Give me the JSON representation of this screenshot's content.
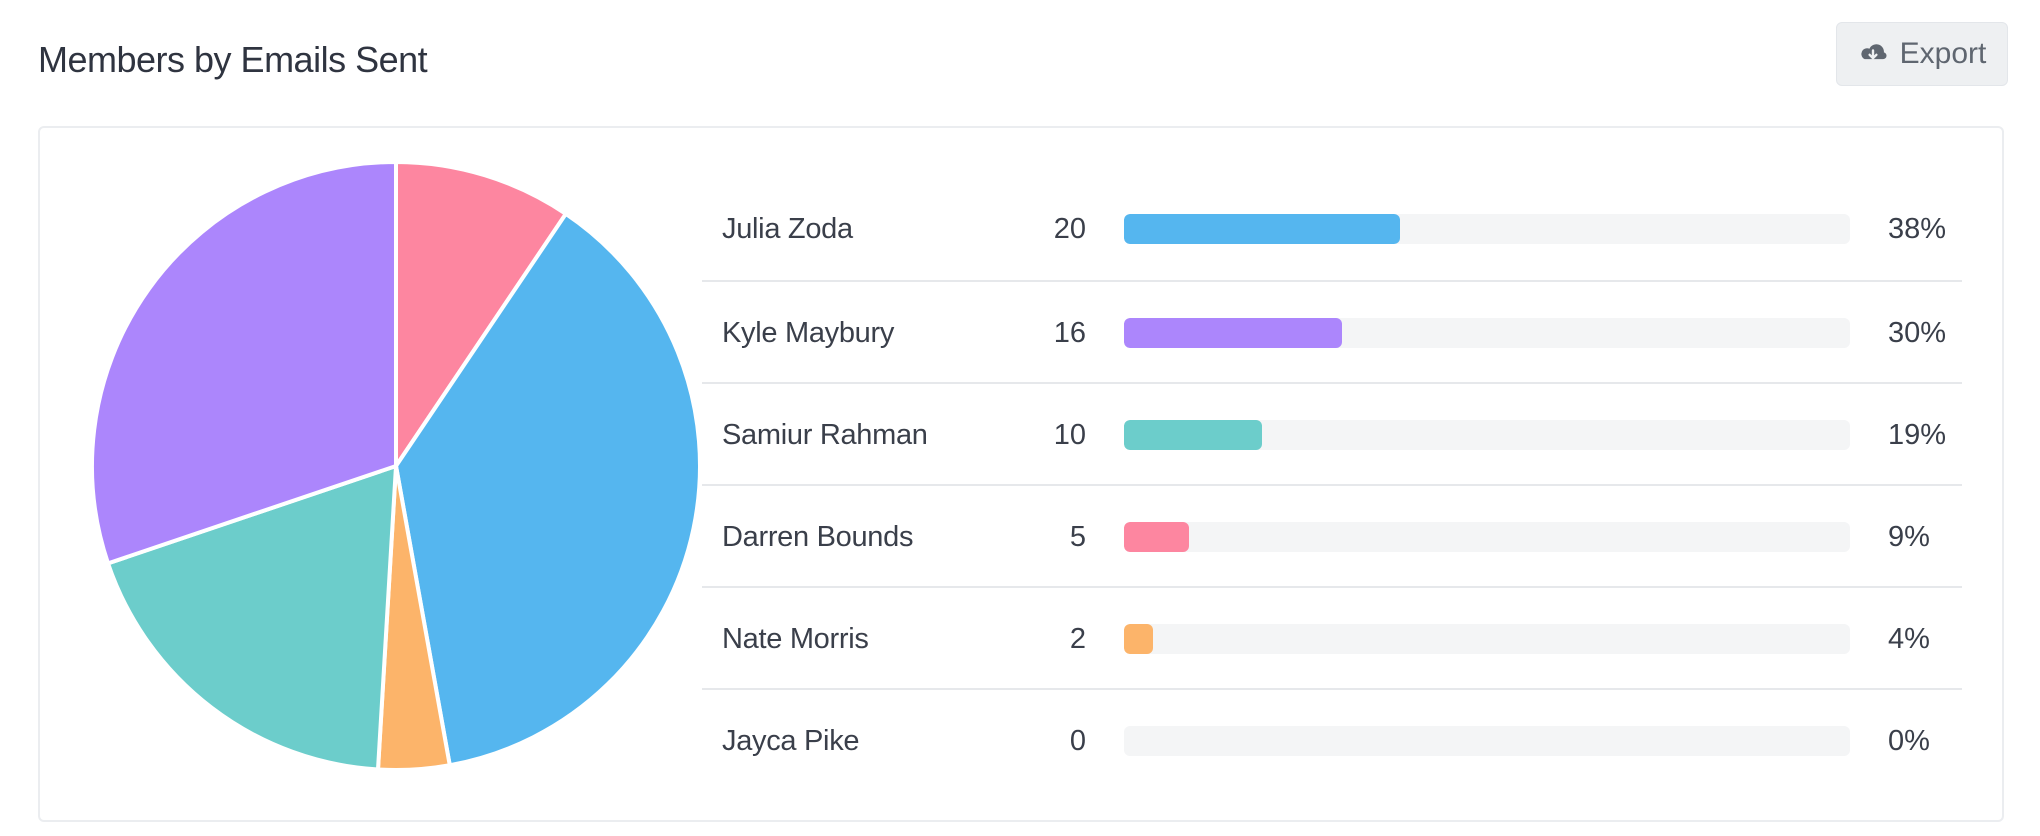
{
  "header": {
    "title": "Members by Emails Sent",
    "export_label": "Export",
    "export_icon": "cloud-download-icon"
  },
  "colors": {
    "blue": "#55b6ef",
    "purple": "#ac86fc",
    "teal": "#6ccdcb",
    "pink": "#fd86a0",
    "orange": "#fcb46a",
    "gray": "#c9cdd2"
  },
  "members": [
    {
      "name": "Julia Zoda",
      "count": "20",
      "percent_label": "38%",
      "percent": 38,
      "color": "#55b6ef"
    },
    {
      "name": "Kyle Maybury",
      "count": "16",
      "percent_label": "30%",
      "percent": 30,
      "color": "#ac86fc"
    },
    {
      "name": "Samiur Rahman",
      "count": "10",
      "percent_label": "19%",
      "percent": 19,
      "color": "#6ccdcb"
    },
    {
      "name": "Darren Bounds",
      "count": "5",
      "percent_label": "9%",
      "percent": 9,
      "color": "#fd86a0"
    },
    {
      "name": "Nate Morris",
      "count": "2",
      "percent_label": "4%",
      "percent": 4,
      "color": "#fcb46a"
    },
    {
      "name": "Jayca Pike",
      "count": "0",
      "percent_label": "0%",
      "percent": 0,
      "color": "#c9cdd2"
    }
  ],
  "chart_data": {
    "type": "pie",
    "categories": [
      "Julia Zoda",
      "Kyle Maybury",
      "Samiur Rahman",
      "Darren Bounds",
      "Nate Morris",
      "Jayca Pike"
    ],
    "values": [
      20,
      16,
      10,
      5,
      2,
      0
    ],
    "colors": [
      "#55b6ef",
      "#ac86fc",
      "#6ccdcb",
      "#fd86a0",
      "#fcb46a",
      "#c9cdd2"
    ],
    "order": [
      "Darren Bounds",
      "Julia Zoda",
      "Nate Morris",
      "Samiur Rahman",
      "Kyle Maybury"
    ]
  }
}
